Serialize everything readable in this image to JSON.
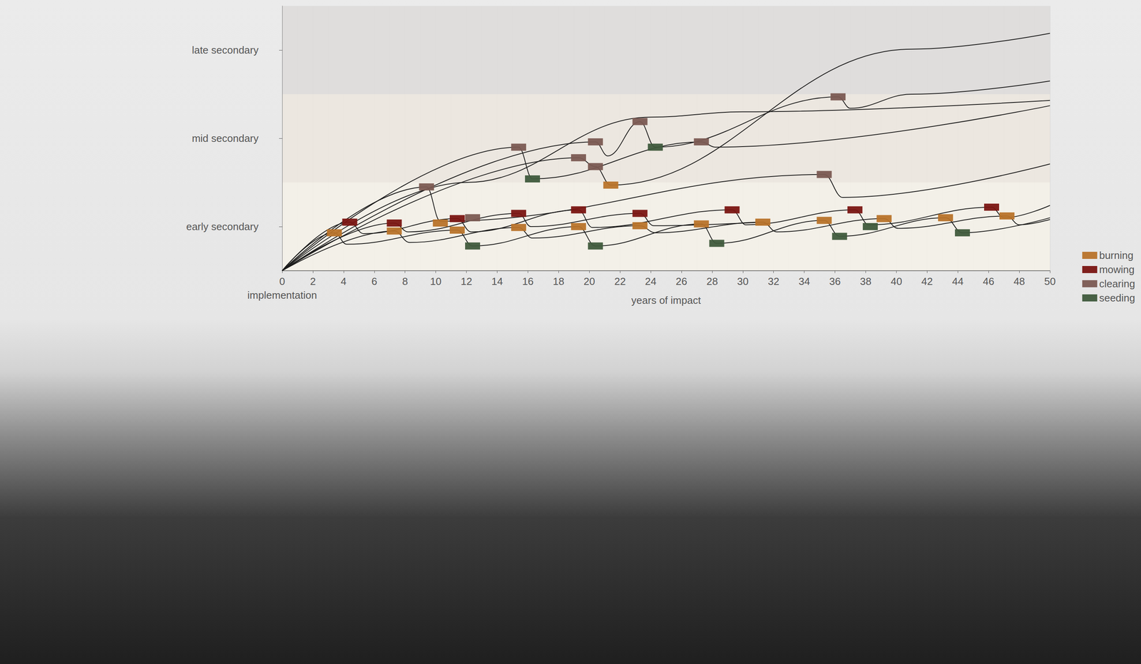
{
  "chart_data": {
    "type": "line",
    "xlabel": "years of impact",
    "annotations": [
      {
        "text": "implementation",
        "x": 0
      }
    ],
    "xlim": [
      0,
      50
    ],
    "xticks": [
      0,
      2,
      4,
      6,
      8,
      10,
      12,
      14,
      16,
      18,
      20,
      22,
      24,
      26,
      28,
      30,
      32,
      34,
      36,
      38,
      40,
      42,
      44,
      46,
      48,
      50
    ],
    "ylim": [
      0,
      3
    ],
    "yticks": [
      {
        "value": 0.5,
        "label": "early secondary"
      },
      {
        "value": 1.5,
        "label": "mid secondary"
      },
      {
        "value": 2.5,
        "label": "late secondary"
      }
    ],
    "grid": true,
    "legend": "right",
    "series": [
      {
        "type": "line",
        "color": "#1a1a1a",
        "line_style": "solid",
        "x": [
          0,
          9.4,
          10.3,
          35.3,
          36.5,
          50
        ],
        "values": [
          0,
          0.95,
          0.56,
          1.09,
          0.83,
          1.21
        ]
      },
      {
        "type": "line",
        "color": "#1a1a1a",
        "line_style": "solid",
        "x": [
          0,
          15.4,
          16.3,
          27.3,
          28.2,
          50
        ],
        "values": [
          0,
          1.4,
          1.04,
          1.46,
          1.4,
          1.87
        ]
      },
      {
        "type": "line",
        "color": "#1a1a1a",
        "line_style": "solid",
        "x": [
          0,
          20.4,
          21.2,
          23.3,
          24.3,
          36.2,
          37,
          41,
          50
        ],
        "values": [
          0,
          1.46,
          1.3,
          1.69,
          1.4,
          1.97,
          1.84,
          2.0,
          2.15
        ]
      },
      {
        "type": "line",
        "color": "#1a1a1a",
        "line_style": "solid",
        "x": [
          0,
          19.3,
          20.4,
          21.4,
          41,
          50
        ],
        "values": [
          0,
          1.28,
          1.18,
          0.97,
          2.51,
          2.69
        ]
      },
      {
        "type": "line",
        "color": "#1a1a1a",
        "line_style": "solid",
        "x": [
          0,
          12,
          24,
          30,
          50
        ],
        "values": [
          0,
          1.0,
          1.74,
          1.8,
          1.93
        ]
      },
      {
        "type": "line",
        "color": "#1a1a1a",
        "line_style": "solid",
        "x": [
          0,
          4.4,
          5.3,
          11.4,
          12.3,
          19.3,
          20.2,
          29.3,
          30.2,
          37.3,
          38.2,
          46.2,
          47,
          50
        ],
        "values": [
          0,
          0.55,
          0.42,
          0.59,
          0.44,
          0.69,
          0.49,
          0.69,
          0.52,
          0.69,
          0.52,
          0.72,
          0.6,
          0.74
        ]
      },
      {
        "type": "line",
        "color": "#1a1a1a",
        "line_style": "solid",
        "x": [
          0,
          3.4,
          4.2,
          11.4,
          12.4,
          19.3,
          20.4,
          27.3,
          28.3,
          35.3,
          36.3,
          43.2,
          44.3,
          50
        ],
        "values": [
          0,
          0.43,
          0.3,
          0.46,
          0.28,
          0.5,
          0.28,
          0.53,
          0.31,
          0.57,
          0.39,
          0.6,
          0.43,
          0.6
        ]
      },
      {
        "type": "line",
        "color": "#1a1a1a",
        "line_style": "solid",
        "x": [
          0,
          7.3,
          8.3,
          15.4,
          16.3,
          23.3,
          24.3,
          31.3,
          32.2,
          39.2,
          40.1,
          47.2,
          48,
          50
        ],
        "values": [
          0,
          0.45,
          0.32,
          0.49,
          0.37,
          0.51,
          0.43,
          0.55,
          0.44,
          0.59,
          0.48,
          0.62,
          0.52,
          0.58
        ]
      },
      {
        "type": "line",
        "color": "#1a1a1a",
        "line_style": "solid",
        "x": [
          0,
          7.3,
          8.2,
          15.4,
          16.2,
          23.3,
          24.2,
          31.3
        ],
        "values": [
          0,
          0.54,
          0.44,
          0.65,
          0.5,
          0.65,
          0.51,
          0.55
        ]
      },
      {
        "type": "scatter",
        "name": "burning",
        "color": "#b8732a",
        "marker": "rect",
        "x": [
          3.4,
          7.3,
          10.3,
          11.4,
          15.4,
          19.3,
          21.4,
          23.3,
          27.3,
          31.3,
          35.3,
          39.2,
          43.2,
          47.2
        ],
        "values": [
          0.43,
          0.45,
          0.54,
          0.46,
          0.49,
          0.5,
          0.97,
          0.51,
          0.53,
          0.55,
          0.57,
          0.59,
          0.6,
          0.62
        ]
      },
      {
        "type": "scatter",
        "name": "mowing",
        "color": "#7a1512",
        "marker": "rect",
        "x": [
          4.4,
          7.3,
          11.4,
          15.4,
          19.3,
          23.3,
          29.3,
          37.3,
          46.2
        ],
        "values": [
          0.55,
          0.54,
          0.59,
          0.65,
          0.69,
          0.65,
          0.69,
          0.69,
          0.72
        ]
      },
      {
        "type": "scatter",
        "name": "clearing",
        "color": "#7b5a52",
        "marker": "rect",
        "x": [
          9.4,
          12.4,
          15.4,
          19.3,
          20.4,
          20.4,
          23.3,
          27.3,
          35.3,
          36.2
        ],
        "values": [
          0.95,
          0.6,
          1.4,
          1.28,
          1.46,
          1.18,
          1.69,
          1.46,
          1.09,
          1.97
        ]
      },
      {
        "type": "scatter",
        "name": "seeding",
        "color": "#3f5a3c",
        "marker": "rect",
        "x": [
          12.4,
          16.3,
          20.4,
          24.3,
          28.3,
          36.3,
          38.3,
          44.3
        ],
        "values": [
          0.28,
          1.04,
          0.28,
          1.4,
          0.31,
          0.39,
          0.5,
          0.43
        ]
      }
    ]
  }
}
